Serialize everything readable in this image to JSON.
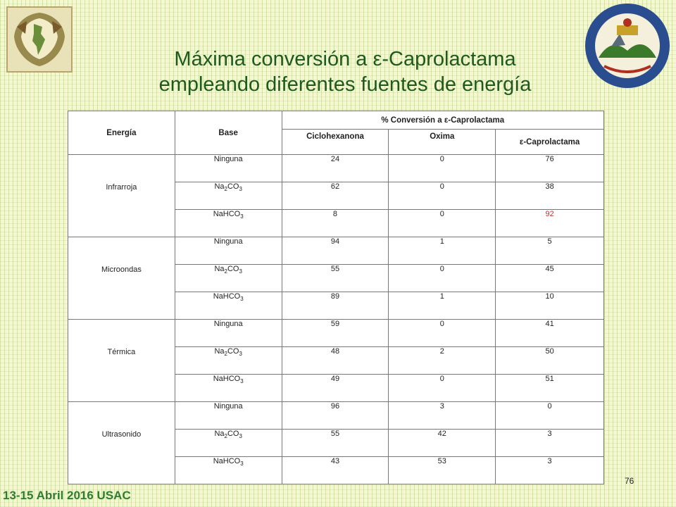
{
  "title": {
    "line1": "Máxima conversión a ε-Caprolactama",
    "line2": "empleando diferentes fuentes de energía"
  },
  "table": {
    "headers": {
      "energy": "Energía",
      "base": "Base",
      "conversion": "% Conversión a ε-Caprolactama",
      "col1": "Ciclohexanona",
      "col2": "Oxima",
      "col3": "ε-Caprolactama"
    },
    "groups": [
      {
        "energy": "Infrarroja",
        "rows": [
          {
            "base": "Ninguna",
            "cyclohexanone": "24",
            "oxime": "0",
            "caprolactam": "76"
          },
          {
            "base": "Na2CO3",
            "cyclohexanone": "62",
            "oxime": "0",
            "caprolactam": "38"
          },
          {
            "base": "NaHCO3",
            "cyclohexanone": "8",
            "oxime": "0",
            "caprolactam": "92",
            "highlight": true
          }
        ]
      },
      {
        "energy": "Microondas",
        "rows": [
          {
            "base": "Ninguna",
            "cyclohexanone": "94",
            "oxime": "1",
            "caprolactam": "5"
          },
          {
            "base": "Na2CO3",
            "cyclohexanone": "55",
            "oxime": "0",
            "caprolactam": "45"
          },
          {
            "base": "NaHCO3",
            "cyclohexanone": "89",
            "oxime": "1",
            "caprolactam": "10"
          }
        ]
      },
      {
        "energy": "Térmica",
        "rows": [
          {
            "base": "Ninguna",
            "cyclohexanone": "59",
            "oxime": "0",
            "caprolactam": "41"
          },
          {
            "base": "Na2CO3",
            "cyclohexanone": "48",
            "oxime": "2",
            "caprolactam": "50"
          },
          {
            "base": "NaHCO3",
            "cyclohexanone": "49",
            "oxime": "0",
            "caprolactam": "51"
          }
        ]
      },
      {
        "energy": "Ultrasonido",
        "rows": [
          {
            "base": "Ninguna",
            "cyclohexanone": "96",
            "oxime": "3",
            "caprolactam": "0"
          },
          {
            "base": "Na2CO3",
            "cyclohexanone": "55",
            "oxime": "42",
            "caprolactam": "3"
          },
          {
            "base": "NaHCO3",
            "cyclohexanone": "43",
            "oxime": "53",
            "caprolactam": "3"
          }
        ]
      }
    ]
  },
  "footer": {
    "date_venue": "13-15 Abril 2016 USAC",
    "page_number": "76"
  },
  "colors": {
    "title": "#1e5a1e",
    "footer": "#2f7d2f",
    "highlight": "#d22b2b"
  },
  "icons": {
    "left_logo": "university-crest-icon",
    "right_logo": "university-seal-icon"
  }
}
